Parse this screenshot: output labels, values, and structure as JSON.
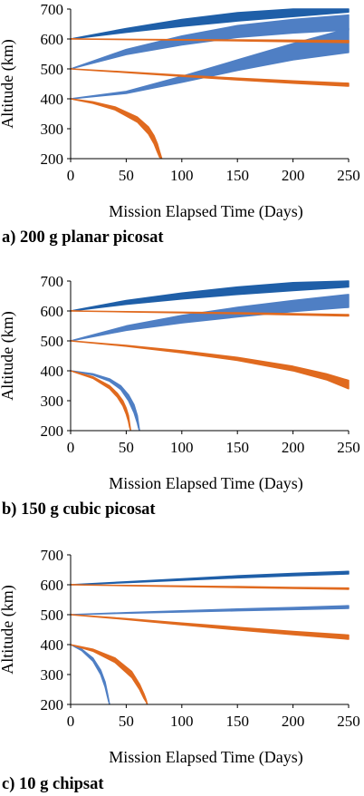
{
  "chart_data": [
    {
      "type": "area",
      "caption": "a) 200 g planar picosat",
      "xlabel": "Mission Elapsed Time (Days)",
      "ylabel": "Altitude (km)",
      "xlim": [
        0,
        250
      ],
      "ylim": [
        200,
        700
      ],
      "xticks": [
        "0",
        "50",
        "100",
        "150",
        "200",
        "250"
      ],
      "yticks": [
        "200",
        "300",
        "400",
        "500",
        "600",
        "700"
      ],
      "grid": false,
      "colors": {
        "dark_blue": "#1f5fa8",
        "light_blue": "#4f7fc4",
        "orange": "#e06a1f"
      },
      "series": [
        {
          "color": "#1f5fa8",
          "x": [
            0,
            50,
            100,
            150,
            200,
            250
          ],
          "upper": [
            600,
            635,
            665,
            688,
            700,
            700
          ],
          "lower": [
            600,
            622,
            642,
            660,
            675,
            690
          ]
        },
        {
          "color": "#4f7fc4",
          "x": [
            0,
            50,
            100,
            150,
            200,
            250
          ],
          "upper": [
            500,
            565,
            610,
            645,
            665,
            680
          ],
          "lower": [
            500,
            548,
            580,
            605,
            620,
            630
          ]
        },
        {
          "color": "#4f7fc4",
          "x": [
            0,
            50,
            100,
            150,
            200,
            250
          ],
          "upper": [
            400,
            425,
            475,
            530,
            585,
            635
          ],
          "lower": [
            400,
            418,
            455,
            495,
            530,
            555
          ]
        },
        {
          "color": "#e06a1f",
          "x": [
            0,
            50,
            100,
            150,
            200,
            250
          ],
          "upper": [
            600,
            599,
            598,
            597,
            596,
            595
          ],
          "lower": [
            600,
            598,
            596,
            594,
            591,
            588
          ]
        },
        {
          "color": "#e06a1f",
          "x": [
            0,
            50,
            100,
            150,
            200,
            250
          ],
          "upper": [
            500,
            490,
            479,
            469,
            460,
            452
          ],
          "lower": [
            500,
            488,
            475,
            463,
            452,
            442
          ]
        },
        {
          "color": "#e06a1f",
          "x": [
            0,
            20,
            40,
            60,
            70,
            75,
            78,
            80,
            82
          ],
          "upper": [
            400,
            390,
            373,
            339,
            306,
            277,
            250,
            225,
            200
          ],
          "lower": [
            400,
            385,
            363,
            322,
            282,
            250,
            222,
            205,
            200
          ]
        }
      ]
    },
    {
      "type": "area",
      "caption": "b) 150 g cubic picosat",
      "xlabel": "Mission Elapsed Time (Days)",
      "ylabel": "Altitude (km)",
      "xlim": [
        0,
        250
      ],
      "ylim": [
        200,
        700
      ],
      "xticks": [
        "0",
        "50",
        "100",
        "150",
        "200",
        "250"
      ],
      "yticks": [
        "200",
        "300",
        "400",
        "500",
        "600",
        "700"
      ],
      "grid": false,
      "colors": {
        "dark_blue": "#1f5fa8",
        "light_blue": "#4f7fc4",
        "orange": "#e06a1f"
      },
      "series": [
        {
          "color": "#1f5fa8",
          "x": [
            0,
            50,
            100,
            150,
            200,
            250
          ],
          "upper": [
            600,
            635,
            660,
            680,
            695,
            700
          ],
          "lower": [
            600,
            622,
            640,
            655,
            668,
            680
          ]
        },
        {
          "color": "#4f7fc4",
          "x": [
            0,
            50,
            100,
            150,
            200,
            250
          ],
          "upper": [
            500,
            550,
            585,
            612,
            635,
            655
          ],
          "lower": [
            500,
            535,
            560,
            580,
            598,
            612
          ]
        },
        {
          "color": "#e06a1f",
          "x": [
            0,
            50,
            100,
            150,
            200,
            250
          ],
          "upper": [
            600,
            598,
            596,
            594,
            591,
            588
          ],
          "lower": [
            600,
            597,
            594,
            591,
            587,
            583
          ]
        },
        {
          "color": "#e06a1f",
          "x": [
            0,
            50,
            100,
            150,
            200,
            230,
            250
          ],
          "upper": [
            500,
            485,
            467,
            445,
            415,
            390,
            368
          ],
          "lower": [
            500,
            482,
            460,
            435,
            400,
            370,
            340
          ]
        },
        {
          "color": "#4f7fc4",
          "x": [
            0,
            20,
            35,
            45,
            52,
            57,
            60,
            61,
            62
          ],
          "upper": [
            400,
            390,
            373,
            350,
            320,
            287,
            250,
            225,
            200
          ],
          "lower": [
            400,
            386,
            365,
            338,
            300,
            260,
            225,
            210,
            200
          ]
        },
        {
          "color": "#e06a1f",
          "x": [
            0,
            20,
            35,
            42,
            47,
            50,
            52,
            53,
            54
          ],
          "upper": [
            400,
            380,
            350,
            325,
            300,
            275,
            250,
            225,
            200
          ],
          "lower": [
            400,
            375,
            340,
            312,
            283,
            255,
            230,
            212,
            200
          ]
        }
      ]
    },
    {
      "type": "area",
      "caption": "c) 10 g chipsat",
      "xlabel": "Mission Elapsed Time (Days)",
      "ylabel": "Altitude (km)",
      "xlim": [
        0,
        250
      ],
      "ylim": [
        200,
        700
      ],
      "xticks": [
        "0",
        "50",
        "100",
        "150",
        "200",
        "250"
      ],
      "yticks": [
        "200",
        "300",
        "400",
        "500",
        "600",
        "700"
      ],
      "grid": false,
      "colors": {
        "dark_blue": "#1f5fa8",
        "light_blue": "#4f7fc4",
        "orange": "#e06a1f"
      },
      "series": [
        {
          "color": "#1f5fa8",
          "x": [
            0,
            50,
            100,
            150,
            200,
            250
          ],
          "upper": [
            600,
            610,
            620,
            630,
            638,
            645
          ],
          "lower": [
            600,
            607,
            615,
            623,
            630,
            636
          ]
        },
        {
          "color": "#4f7fc4",
          "x": [
            0,
            50,
            100,
            150,
            200,
            250
          ],
          "upper": [
            500,
            507,
            513,
            519,
            524,
            530
          ],
          "lower": [
            500,
            505,
            509,
            513,
            517,
            521
          ]
        },
        {
          "color": "#e06a1f",
          "x": [
            0,
            50,
            100,
            150,
            200,
            250
          ],
          "upper": [
            600,
            598,
            596,
            594,
            591,
            589
          ],
          "lower": [
            600,
            597,
            594,
            591,
            588,
            585
          ]
        },
        {
          "color": "#e06a1f",
          "x": [
            0,
            50,
            100,
            150,
            200,
            250
          ],
          "upper": [
            500,
            487,
            472,
            458,
            444,
            432
          ],
          "lower": [
            500,
            484,
            466,
            449,
            433,
            418
          ]
        },
        {
          "color": "#4f7fc4",
          "x": [
            0,
            10,
            20,
            27,
            31,
            33,
            34,
            35
          ],
          "upper": [
            400,
            385,
            355,
            315,
            275,
            240,
            220,
            200
          ],
          "lower": [
            400,
            380,
            345,
            300,
            258,
            228,
            212,
            200
          ]
        },
        {
          "color": "#e06a1f",
          "x": [
            0,
            20,
            40,
            55,
            62,
            66,
            68,
            69
          ],
          "upper": [
            400,
            385,
            355,
            310,
            268,
            235,
            215,
            200
          ],
          "lower": [
            400,
            378,
            340,
            290,
            250,
            220,
            208,
            200
          ]
        }
      ]
    }
  ]
}
